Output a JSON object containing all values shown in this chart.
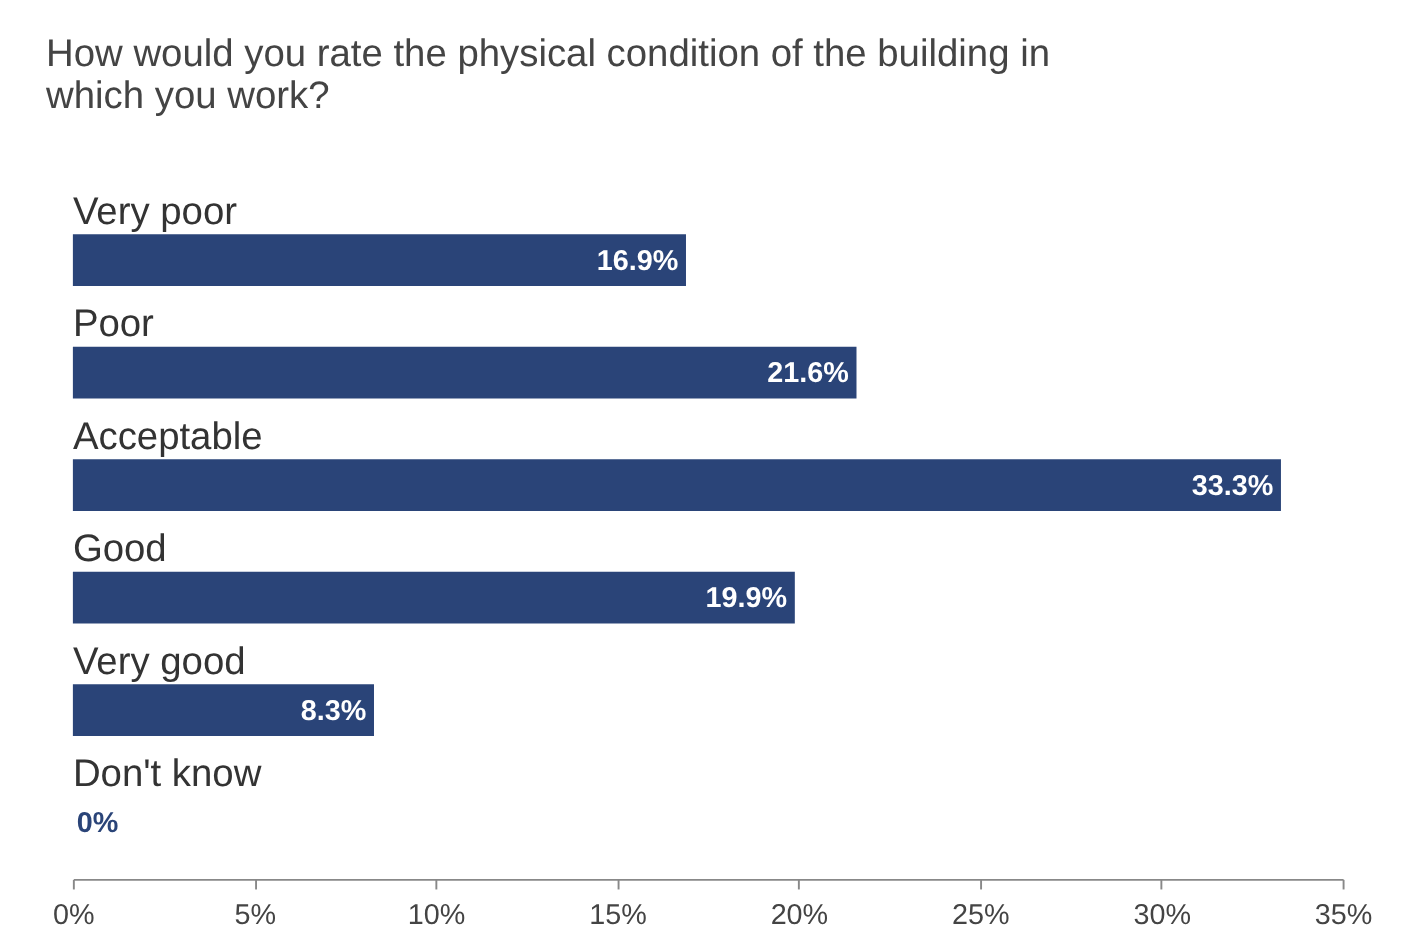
{
  "chart_data": {
    "type": "bar",
    "orientation": "horizontal",
    "title": [
      "How would you rate the physical condition of the building in",
      "which you work?"
    ],
    "categories": [
      "Very poor",
      "Poor",
      "Acceptable",
      "Good",
      "Very good",
      "Don't know"
    ],
    "values": [
      16.9,
      21.6,
      33.3,
      19.9,
      8.3,
      0
    ],
    "value_labels": [
      "16.9%",
      "21.6%",
      "33.3%",
      "19.9%",
      "8.3%",
      "0%"
    ],
    "color": "#2a4478",
    "xlim": [
      0,
      35
    ],
    "xticks": [
      {
        "value": 0,
        "label": "0%"
      },
      {
        "value": 5,
        "label": "5%"
      },
      {
        "value": 10,
        "label": "10%"
      },
      {
        "value": 15,
        "label": "15%"
      },
      {
        "value": 20,
        "label": "20%"
      },
      {
        "value": 25,
        "label": "25%"
      },
      {
        "value": 30,
        "label": "30%"
      },
      {
        "value": 35,
        "label": "35%"
      }
    ],
    "grid": false
  }
}
